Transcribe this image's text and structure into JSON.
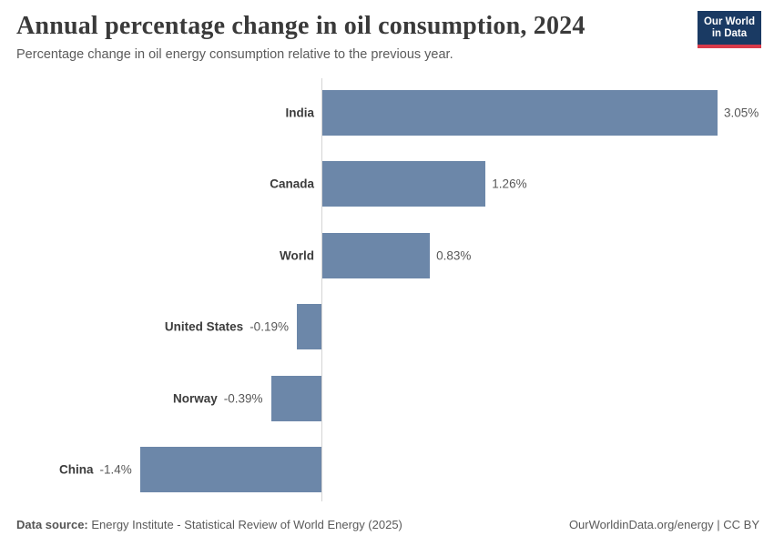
{
  "header": {
    "title": "Annual percentage change in oil consumption, 2024",
    "subtitle": "Percentage change in oil energy consumption relative to the previous year.",
    "logo": {
      "line1": "Our World",
      "line2": "in Data"
    }
  },
  "chart_data": {
    "type": "bar",
    "orientation": "horizontal",
    "title": "Annual percentage change in oil consumption, 2024",
    "categories": [
      "India",
      "Canada",
      "World",
      "United States",
      "Norway",
      "China"
    ],
    "values": [
      3.05,
      1.26,
      0.83,
      -0.19,
      -0.39,
      -1.4
    ],
    "value_labels": [
      "3.05%",
      "1.26%",
      "0.83%",
      "-0.19%",
      "-0.39%",
      "-1.4%"
    ],
    "xlim": [
      -1.4,
      3.05
    ],
    "grid": false,
    "bar_color": "#6c87a9",
    "axis_color": "#d4d4d4",
    "unit": "%"
  },
  "footer": {
    "datasource_label": "Data source:",
    "datasource_text": " Energy Institute - Statistical Review of World Energy (2025)",
    "credit": "OurWorldinData.org/energy | CC BY"
  }
}
